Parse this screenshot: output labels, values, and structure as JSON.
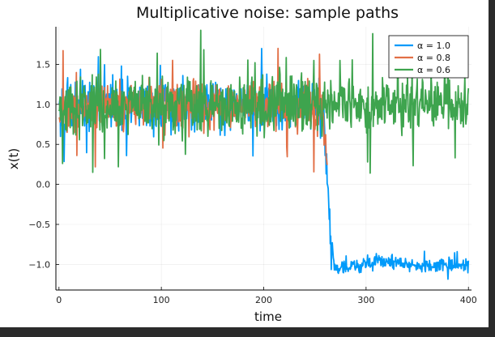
{
  "chart_data": {
    "type": "line",
    "title": "Multiplicative noise: sample paths",
    "xlabel": "time",
    "ylabel": "x(t)",
    "xlim": [
      -3,
      403
    ],
    "ylim": [
      -1.32,
      1.97
    ],
    "xticks": [
      0,
      100,
      200,
      300,
      400
    ],
    "xtick_labels": [
      "0",
      "100",
      "200",
      "300",
      "400"
    ],
    "yticks": [
      -1.0,
      -0.5,
      0.0,
      0.5,
      1.0,
      1.5
    ],
    "ytick_labels": [
      "−1.0",
      "−0.5",
      "0.0",
      "0.5",
      "1.0",
      "1.5"
    ],
    "grid": true,
    "legend_position": "top-right",
    "series": [
      {
        "name": "α = 1.0",
        "color": "#009AFA",
        "description_points": {
          "x": [
            0,
            50,
            100,
            150,
            200,
            250,
            258,
            262,
            265,
            268,
            270,
            280,
            300,
            320,
            340,
            360,
            380,
            400
          ],
          "y": [
            0.95,
            1.0,
            0.98,
            1.0,
            1.0,
            0.98,
            0.9,
            0.2,
            -0.5,
            -0.95,
            -1.05,
            -1.05,
            -0.98,
            -0.95,
            -1.0,
            -1.02,
            -1.0,
            -1.02
          ]
        },
        "noise_amplitude_before": 0.27,
        "noise_amplitude_after": 0.07
      },
      {
        "name": "α = 0.8",
        "color": "#E26F46",
        "description_points": {
          "x": [
            0,
            100,
            200,
            258,
            262
          ],
          "y": [
            0.95,
            1.0,
            1.0,
            0.95,
            0.2
          ]
        },
        "noise_amplitude_before": 0.25
      },
      {
        "name": "α = 0.6",
        "color": "#3EA44E",
        "description_points": {
          "x": [
            0,
            50,
            100,
            150,
            200,
            250,
            300,
            350,
            400
          ],
          "y": [
            0.95,
            1.0,
            0.98,
            1.0,
            1.0,
            0.97,
            1.0,
            1.0,
            0.98
          ]
        },
        "noise_amplitude": 0.3
      }
    ]
  }
}
